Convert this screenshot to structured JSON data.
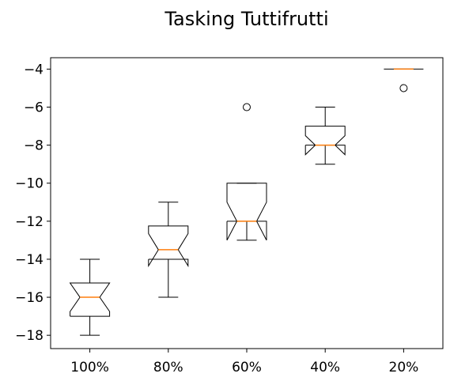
{
  "chart_data": {
    "type": "boxplot",
    "title": "Tasking Tuttifrutti",
    "xlabel": "",
    "ylabel": "",
    "notched": true,
    "categories": [
      "100%",
      "80%",
      "60%",
      "40%",
      "20%"
    ],
    "ylim": [
      -18.7,
      -3.4
    ],
    "yticks": [
      -4,
      -6,
      -8,
      -10,
      -12,
      -14,
      -16,
      -18
    ],
    "ytick_labels": [
      "−4",
      "−6",
      "−8",
      "−10",
      "−12",
      "−14",
      "−16",
      "−18"
    ],
    "boxes": [
      {
        "category": "100%",
        "whisker_low": -18,
        "q1": -17,
        "median": -16,
        "q3": -15.25,
        "whisker_high": -14,
        "notch_low": -16.75,
        "notch_high": -15.25,
        "outliers": []
      },
      {
        "category": "80%",
        "whisker_low": -16,
        "q1": -14,
        "median": -13.5,
        "q3": -12.25,
        "whisker_high": -11,
        "notch_low": -14.35,
        "notch_high": -12.65,
        "outliers": []
      },
      {
        "category": "60%",
        "whisker_low": -13,
        "q1": -12,
        "median": -12,
        "q3": -10,
        "whisker_high": -10,
        "notch_low": -13,
        "notch_high": -11,
        "outliers": [
          -6
        ]
      },
      {
        "category": "40%",
        "whisker_low": -9,
        "q1": -8,
        "median": -8,
        "q3": -7,
        "whisker_high": -6,
        "notch_low": -8.5,
        "notch_high": -7.5,
        "outliers": []
      },
      {
        "category": "20%",
        "whisker_low": -4,
        "q1": -4,
        "median": -4,
        "q3": -4,
        "whisker_high": -4,
        "notch_low": -4,
        "notch_high": -4,
        "outliers": [
          -5
        ]
      }
    ],
    "colors": {
      "box": "#000000",
      "median": "#ff7f0e",
      "background": "#ffffff"
    },
    "grid": false,
    "legend": "none"
  }
}
